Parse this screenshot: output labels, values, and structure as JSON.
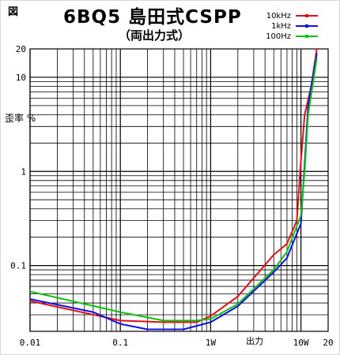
{
  "header": {
    "fig_tag": "図",
    "title": "6BQ5 島田式CSPP",
    "subtitle": "（両出力式）"
  },
  "colors": {
    "red": "#e01010",
    "blue": "#1010e0",
    "green": "#10c010",
    "grid": "#000000"
  },
  "chart_data": {
    "type": "line",
    "x_scale": "log",
    "y_scale": "log",
    "xlim": [
      0.01,
      20
    ],
    "ylim": [
      0.02,
      20
    ],
    "xlabel": "出力",
    "ylabel": "歪率 %",
    "x_ticks": [
      {
        "value": 0.01,
        "label": "0.01"
      },
      {
        "value": 0.1,
        "label": "0.1"
      },
      {
        "value": 1,
        "label": "1W"
      },
      {
        "value": 10,
        "label": "10W"
      },
      {
        "value": 20,
        "label": "20"
      }
    ],
    "y_ticks": [
      {
        "value": 20,
        "label": "20"
      },
      {
        "value": 10,
        "label": "10"
      },
      {
        "value": 1,
        "label": "1"
      },
      {
        "value": 0.1,
        "label": "0.1"
      }
    ],
    "grid": true,
    "legend": "top-right",
    "series": [
      {
        "name": "10kHz",
        "color": "#e01010",
        "x": [
          0.01,
          0.1,
          0.3,
          0.7,
          1,
          2,
          5,
          7,
          9,
          10,
          11,
          13,
          15
        ],
        "y": [
          0.042,
          0.026,
          0.025,
          0.025,
          0.029,
          0.047,
          0.13,
          0.17,
          0.3,
          1.3,
          4,
          8,
          20
        ]
      },
      {
        "name": "1kHz",
        "color": "#1010e0",
        "x": [
          0.01,
          0.05,
          0.1,
          0.2,
          0.5,
          1,
          2,
          5,
          7,
          10,
          11,
          12,
          15
        ],
        "y": [
          0.044,
          0.032,
          0.024,
          0.021,
          0.021,
          0.025,
          0.037,
          0.085,
          0.12,
          0.28,
          1.2,
          5,
          18
        ]
      },
      {
        "name": "100Hz",
        "color": "#10c010",
        "x": [
          0.01,
          0.1,
          0.3,
          0.7,
          1,
          2,
          5,
          7,
          10,
          11,
          12,
          15
        ],
        "y": [
          0.053,
          0.032,
          0.026,
          0.026,
          0.027,
          0.039,
          0.09,
          0.14,
          0.34,
          1,
          4,
          16
        ]
      }
    ]
  }
}
